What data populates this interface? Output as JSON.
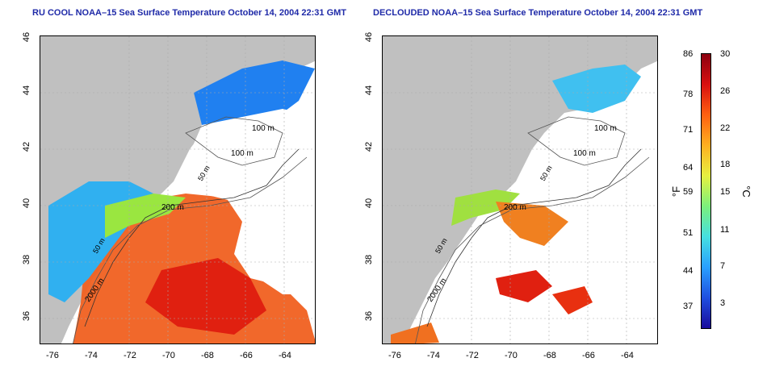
{
  "maps": [
    {
      "title": "RU COOL NOAA–15 Sea Surface Temperature October 14, 2004 22:31 GMT",
      "x_ticks": [
        "-76",
        "-74",
        "-72",
        "-70",
        "-68",
        "-66",
        "-64"
      ],
      "y_ticks": [
        "36",
        "38",
        "40",
        "42",
        "44",
        "46"
      ],
      "depth_labels": [
        "100 m",
        "100 m",
        "50 m",
        "200 m",
        "50 m",
        "2000 m"
      ]
    },
    {
      "title": "DECLOUDED NOAA–15 Sea Surface Temperature October 14, 2004 22:31 GMT",
      "x_ticks": [
        "-76",
        "-74",
        "-72",
        "-70",
        "-68",
        "-66",
        "-64"
      ],
      "y_ticks": [
        "36",
        "38",
        "40",
        "42",
        "44",
        "46"
      ],
      "depth_labels": [
        "100 m",
        "100 m",
        "50 m",
        "200 m",
        "50 m",
        "2000 m"
      ]
    }
  ],
  "colorbar": {
    "fahrenheit_label": "°F",
    "celsius_label": "°C",
    "fahrenheit_ticks": [
      "86",
      "78",
      "71",
      "64",
      "59",
      "51",
      "44",
      "37"
    ],
    "celsius_ticks": [
      "30",
      "26",
      "22",
      "18",
      "15",
      "11",
      "7",
      "3"
    ],
    "colors": [
      "#1a0c9c",
      "#1f4fe0",
      "#2aa0ff",
      "#46e0e0",
      "#7cf07c",
      "#e6f040",
      "#ffb020",
      "#ff6010",
      "#d81010",
      "#8c0010"
    ]
  },
  "palette": {
    "land": "#c0c0c0",
    "cloud": "#ffffff",
    "title_color": "#1f2aa8"
  }
}
